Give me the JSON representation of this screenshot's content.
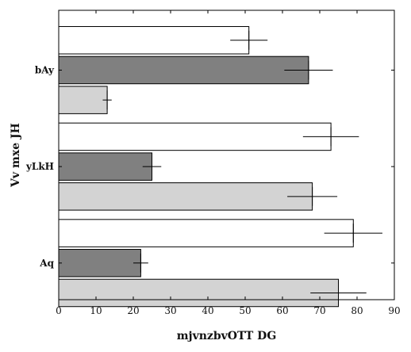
{
  "chart_data": {
    "type": "bar",
    "orientation": "horizontal",
    "xlabel": "mjvnzbvOTT DG",
    "ylabel": "Vv mxe JH",
    "xlim": [
      0,
      90
    ],
    "xticks": [
      0,
      10,
      20,
      30,
      40,
      50,
      60,
      70,
      80,
      90
    ],
    "categories": [
      "bAy",
      "yLkH",
      "Aq"
    ],
    "grid": false,
    "series": [
      {
        "color": "#ffffff",
        "values": [
          51,
          73,
          79
        ],
        "errors": [
          5,
          7.5,
          7.8
        ]
      },
      {
        "color": "#808080",
        "values": [
          67,
          25,
          22
        ],
        "errors": [
          6.5,
          2.5,
          2
        ]
      },
      {
        "color": "#d3d3d3",
        "values": [
          13,
          68,
          75
        ],
        "errors": [
          1.2,
          6.7,
          7.5
        ]
      }
    ]
  }
}
